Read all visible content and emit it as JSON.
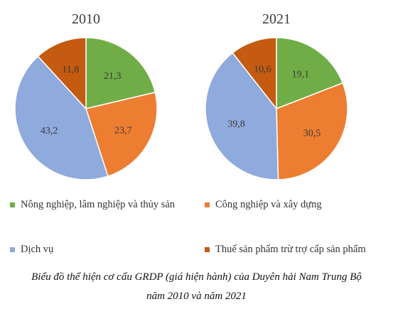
{
  "chart_data": {
    "type": "pie",
    "colors": [
      "#70ad47",
      "#ed7d31",
      "#8faadc",
      "#c55a11"
    ],
    "categories": [
      "Nông nghiệp, lâm nghiệp và thủy sản",
      "Công nghiệp và xây dựng",
      "Dịch vụ",
      "Thuế sản phẩm trừ trợ cấp sản phẩm"
    ],
    "charts": [
      {
        "title": "2010",
        "values": [
          21.3,
          23.7,
          43.2,
          11.8
        ],
        "labels": [
          "21,3",
          "23,7",
          "43,2",
          "11,8"
        ]
      },
      {
        "title": "2021",
        "values": [
          19.1,
          30.5,
          39.8,
          10.6
        ],
        "labels": [
          "19,1",
          "30,5",
          "39,8",
          "10,6"
        ]
      }
    ],
    "legend_position": "bottom"
  },
  "caption": {
    "line1": "Biểu đồ thể hiện cơ cấu GRDP (giá hiện hành) của Duyên hải Nam Trung Bộ",
    "line2": "năm 2010 và năm 2021"
  }
}
